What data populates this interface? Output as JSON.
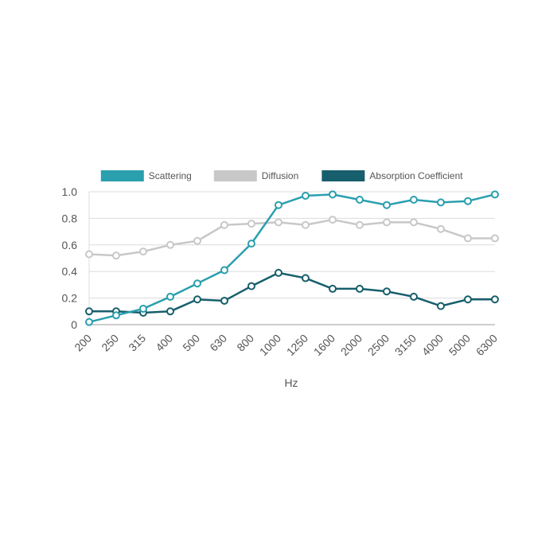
{
  "chart_data": {
    "type": "line",
    "title": "",
    "xlabel": "Hz",
    "ylabel": "",
    "ylim": [
      0,
      1.0
    ],
    "yticks": [
      0,
      0.2,
      0.4,
      0.6,
      0.8,
      1.0
    ],
    "ytick_labels": [
      "0",
      "0.2",
      "0.4",
      "0.6",
      "0.8",
      "1.0"
    ],
    "grid": true,
    "legend_position": "top",
    "categories": [
      "200",
      "250",
      "315",
      "400",
      "500",
      "630",
      "800",
      "1000",
      "1250",
      "1600",
      "2000",
      "2500",
      "3150",
      "4000",
      "5000",
      "6300"
    ],
    "series": [
      {
        "name": "Scattering",
        "color": "#2a9fae",
        "values": [
          0.02,
          0.07,
          0.12,
          0.21,
          0.31,
          0.41,
          0.61,
          0.9,
          0.97,
          0.98,
          0.94,
          0.9,
          0.94,
          0.92,
          0.93,
          0.98
        ]
      },
      {
        "name": "Diffusion",
        "color": "#c8c8c8",
        "values": [
          0.53,
          0.52,
          0.55,
          0.6,
          0.63,
          0.75,
          0.76,
          0.77,
          0.75,
          0.79,
          0.75,
          0.77,
          0.77,
          0.72,
          0.65,
          0.65
        ]
      },
      {
        "name": "Absorption Coefficient",
        "color": "#175f6c",
        "values": [
          0.1,
          0.1,
          0.09,
          0.1,
          0.19,
          0.18,
          0.29,
          0.39,
          0.35,
          0.27,
          0.27,
          0.25,
          0.21,
          0.14,
          0.19,
          0.19
        ]
      }
    ]
  }
}
